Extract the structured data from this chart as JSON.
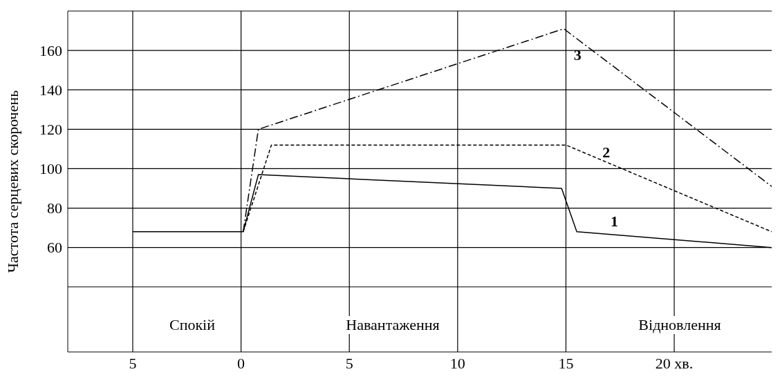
{
  "chart_data": {
    "type": "line",
    "ylabel": "Частота серцевих скорочень",
    "xlim": [
      -8,
      24.5
    ],
    "xticks": [
      {
        "value": -5,
        "label": "5"
      },
      0,
      5,
      10,
      15,
      {
        "value": 20,
        "label": "20 хв."
      }
    ],
    "ylim": [
      7,
      180
    ],
    "yticks": [
      {
        "value": 40,
        "label": null
      },
      60,
      80,
      100,
      120,
      140,
      160,
      {
        "value": 180,
        "label": null
      }
    ],
    "grid": true,
    "marker": "none",
    "series": [
      {
        "name": "1",
        "color": "#000000",
        "line_style": "solid",
        "x": [
          -5,
          0.1,
          0.8,
          14.8,
          15.5,
          24.5
        ],
        "values": [
          68,
          68,
          97,
          90,
          68,
          60
        ]
      },
      {
        "name": "2",
        "color": "#000000",
        "line_style": "dashed",
        "x": [
          0.1,
          1.4,
          15,
          24.5
        ],
        "values": [
          68,
          112,
          112,
          68
        ]
      },
      {
        "name": "3",
        "color": "#000000",
        "line_style": "dotted",
        "x": [
          0.1,
          0.8,
          14.9,
          24.5
        ],
        "values": [
          68,
          120,
          171,
          91
        ]
      }
    ],
    "annotations": [
      "Спокій",
      "Навантаження",
      "Відновлення"
    ]
  }
}
